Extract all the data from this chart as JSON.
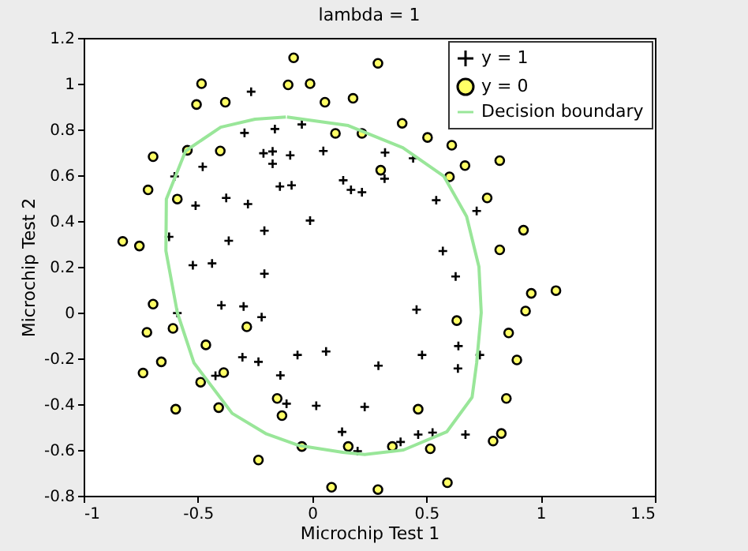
{
  "chart_data": {
    "type": "scatter",
    "title": "lambda = 1",
    "xlabel": "Microchip Test 1",
    "ylabel": "Microchip Test 2",
    "xlim": [
      -1,
      1.5
    ],
    "xticks": [
      -1,
      -0.5,
      0,
      0.5,
      1,
      1.5
    ],
    "ylim": [
      -0.8,
      1.2
    ],
    "yticks": [
      -0.8,
      -0.6,
      -0.4,
      -0.2,
      0,
      0.2,
      0.4,
      0.6,
      0.8,
      1,
      1.2
    ],
    "grid": false,
    "legend": "top right",
    "series": [
      {
        "name": "y = 1",
        "marker": "cross",
        "color": "#000000",
        "x": [
          -0.267,
          -0.296,
          -0.163,
          -0.045,
          -0.213,
          -0.173,
          -0.173,
          -0.096,
          0.049,
          -0.479,
          -0.602,
          -0.141,
          -0.09,
          0.136,
          0.17,
          0.218,
          -0.376,
          -0.51,
          -0.281,
          -0.009,
          -0.209,
          -0.626,
          -0.365,
          -0.522,
          -0.438,
          -0.209,
          -0.59,
          -0.397,
          -0.3,
          -0.221,
          -0.305,
          -0.235,
          -0.064,
          0.061,
          -0.423,
          -0.139,
          -0.112,
          0.018,
          0.131,
          0.319,
          0.442,
          0.317,
          0.543,
          0.72,
          0.572,
          0.628,
          0.457,
          0.481,
          0.29,
          0.64,
          0.638,
          0.734,
          0.23,
          0.464,
          0.527,
          0.671,
          0.387,
          0.199
        ],
        "values": [
          0.965,
          0.785,
          0.802,
          0.822,
          0.696,
          0.704,
          0.65,
          0.687,
          0.706,
          0.637,
          0.595,
          0.551,
          0.556,
          0.578,
          0.536,
          0.526,
          0.501,
          0.467,
          0.474,
          0.402,
          0.358,
          0.331,
          0.314,
          0.207,
          0.215,
          0.17,
          -0.002,
          0.032,
          0.027,
          -0.02,
          -0.195,
          -0.215,
          -0.185,
          -0.17,
          -0.276,
          -0.274,
          -0.398,
          -0.407,
          -0.521,
          0.699,
          0.674,
          0.585,
          0.491,
          0.444,
          0.269,
          0.158,
          0.013,
          -0.185,
          -0.232,
          -0.146,
          -0.244,
          -0.185,
          -0.412,
          -0.533,
          -0.524,
          -0.533,
          -0.565,
          -0.605
        ]
      },
      {
        "name": "y = 0",
        "marker": "circle",
        "color": "#ffff66",
        "x": [
          -0.081,
          -0.484,
          -0.105,
          -0.009,
          -0.506,
          -0.38,
          0.056,
          0.179,
          0.102,
          0.218,
          -0.696,
          -0.546,
          -0.402,
          -0.718,
          -0.59,
          -0.829,
          -0.756,
          0.288,
          0.394,
          0.505,
          0.611,
          0.669,
          0.821,
          0.3,
          0.601,
          0.766,
          0.925,
          0.821,
          0.959,
          1.067,
          0.934,
          0.633,
          0.86,
          0.896,
          0.85,
          0.464,
          0.828,
          0.792,
          0.517,
          0.351,
          0.158,
          0.288,
          0.592,
          -0.696,
          -0.723,
          -0.609,
          -0.465,
          -0.286,
          -0.74,
          -0.66,
          -0.488,
          -0.387,
          -0.597,
          -0.409,
          -0.153,
          -0.132,
          -0.045,
          -0.235,
          0.085
        ],
        "values": [
          1.113,
          1.0,
          0.995,
          1.0,
          0.909,
          0.919,
          0.919,
          0.936,
          0.783,
          0.783,
          0.681,
          0.709,
          0.706,
          0.536,
          0.496,
          0.311,
          0.291,
          1.089,
          0.827,
          0.765,
          0.731,
          0.642,
          0.664,
          0.622,
          0.593,
          0.501,
          0.36,
          0.274,
          0.084,
          0.096,
          0.007,
          -0.035,
          -0.089,
          -0.207,
          -0.375,
          -0.422,
          -0.528,
          -0.561,
          -0.595,
          -0.585,
          -0.585,
          -0.773,
          -0.743,
          0.037,
          -0.086,
          -0.069,
          -0.141,
          -0.062,
          -0.264,
          -0.215,
          -0.304,
          -0.262,
          -0.422,
          -0.415,
          -0.375,
          -0.45,
          -0.585,
          -0.644,
          -0.763
        ]
      },
      {
        "name": "Decision boundary",
        "type": "line",
        "marker": "none",
        "line_style": "solid",
        "color": "#99e699",
        "x": [
          -0.11,
          0.158,
          0.397,
          0.577,
          0.676,
          0.73,
          0.74,
          0.72,
          0.7,
          0.59,
          0.4,
          0.23,
          0.134,
          -0.06,
          -0.2,
          -0.35,
          -0.517,
          -0.59,
          -0.64,
          -0.638,
          -0.554,
          -0.4,
          -0.25,
          -0.115
        ],
        "values": [
          0.854,
          0.817,
          0.72,
          0.595,
          0.42,
          0.2,
          0.0,
          -0.22,
          -0.37,
          -0.52,
          -0.6,
          -0.62,
          -0.61,
          -0.58,
          -0.53,
          -0.44,
          -0.22,
          0.0,
          0.27,
          0.496,
          0.706,
          0.81,
          0.845,
          0.854
        ]
      }
    ]
  }
}
